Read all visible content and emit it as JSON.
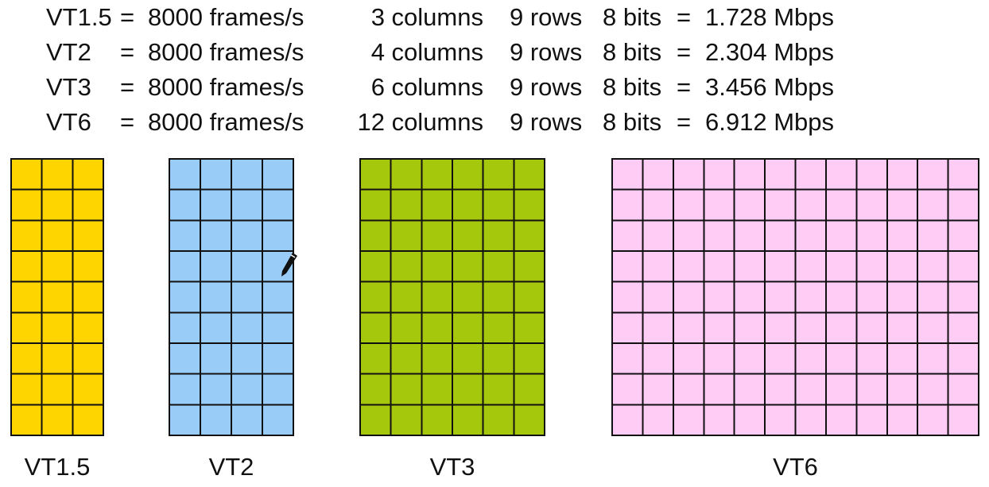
{
  "rows": [
    {
      "name": "VT1.5",
      "eq1": "=",
      "fps": "8000 frames/s",
      "cols": "3 columns",
      "rows": "9 rows",
      "bits": "8 bits",
      "eq2": "=",
      "rate": "1.728 Mbps"
    },
    {
      "name": "VT2",
      "eq1": "=",
      "fps": "8000 frames/s",
      "cols": "4 columns",
      "rows": "9 rows",
      "bits": "8 bits",
      "eq2": "=",
      "rate": "2.304 Mbps"
    },
    {
      "name": "VT3",
      "eq1": "=",
      "fps": "8000 frames/s",
      "cols": "6 columns",
      "rows": "9 rows",
      "bits": "8 bits",
      "eq2": "=",
      "rate": "3.456 Mbps"
    },
    {
      "name": "VT6",
      "eq1": "=",
      "fps": "8000 frames/s",
      "cols": "12 columns",
      "rows": "9 rows",
      "bits": "8 bits",
      "eq2": "=",
      "rate": "6.912 Mbps"
    }
  ],
  "grids": [
    {
      "label": "VT1.5",
      "columns": 3,
      "rows": 9,
      "fill": "#FFD500"
    },
    {
      "label": "VT2",
      "columns": 4,
      "rows": 9,
      "fill": "#99CCF7"
    },
    {
      "label": "VT3",
      "columns": 6,
      "rows": 9,
      "fill": "#A6C80C"
    },
    {
      "label": "VT6",
      "columns": 12,
      "rows": 9,
      "fill": "#FFCCF6"
    }
  ],
  "colors": {
    "grid_line": "#111111",
    "text": "#111111"
  },
  "cursor": {
    "icon": "pen-cursor-icon"
  }
}
